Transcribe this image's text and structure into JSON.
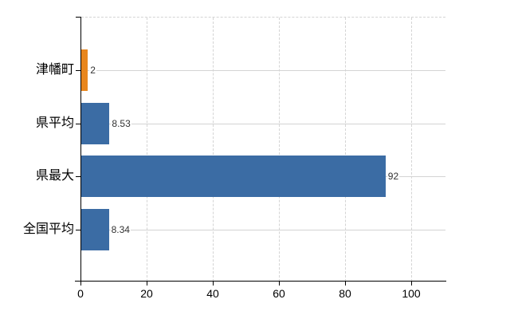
{
  "chart_data": {
    "type": "bar",
    "orientation": "horizontal",
    "title": "",
    "categories": [
      "津幡町",
      "県平均",
      "県最大",
      "全国平均"
    ],
    "values": [
      2,
      8.53,
      92,
      8.34
    ],
    "value_labels": [
      "2",
      "8.53",
      "92",
      "8.34"
    ],
    "series_colors": [
      "#E8861D",
      "#3B6CA4",
      "#3B6CA4",
      "#3B6CA4"
    ],
    "xticks": [
      0,
      20,
      40,
      60,
      80,
      100
    ],
    "xtick_labels": [
      "0",
      "20",
      "40",
      "60",
      "80",
      "100"
    ],
    "xlim": [
      0,
      110.6
    ],
    "grid": true,
    "legend": false,
    "colors": {
      "background": "#FFFFFF",
      "gridline": "#D4D4D4",
      "axis": "#000000",
      "value_label": "#333333",
      "tick_label": "#000000"
    }
  }
}
